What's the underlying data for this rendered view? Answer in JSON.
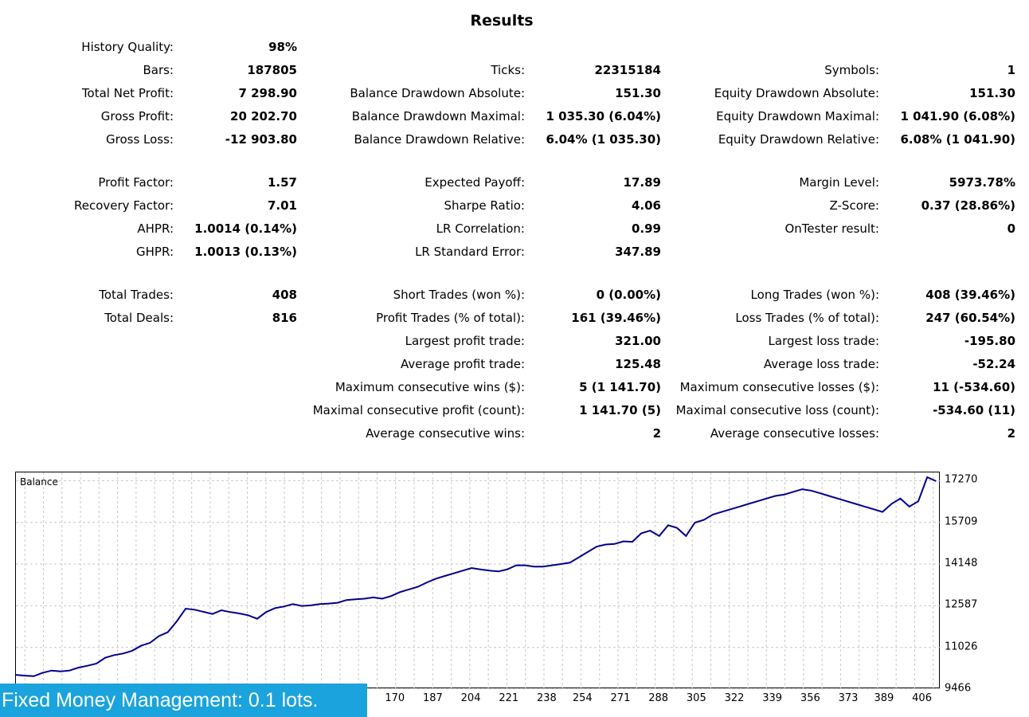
{
  "title": "Results",
  "stats": {
    "history_quality": {
      "label": "History Quality:",
      "value": "98%"
    },
    "bars": {
      "label": "Bars:",
      "value": "187805"
    },
    "ticks": {
      "label": "Ticks:",
      "value": "22315184"
    },
    "symbols": {
      "label": "Symbols:",
      "value": "1"
    },
    "total_net_profit": {
      "label": "Total Net Profit:",
      "value": "7 298.90"
    },
    "balance_dd_abs": {
      "label": "Balance Drawdown Absolute:",
      "value": "151.30"
    },
    "equity_dd_abs": {
      "label": "Equity Drawdown Absolute:",
      "value": "151.30"
    },
    "gross_profit": {
      "label": "Gross Profit:",
      "value": "20 202.70"
    },
    "balance_dd_max": {
      "label": "Balance Drawdown Maximal:",
      "value": "1 035.30 (6.04%)"
    },
    "equity_dd_max": {
      "label": "Equity Drawdown Maximal:",
      "value": "1 041.90 (6.08%)"
    },
    "gross_loss": {
      "label": "Gross Loss:",
      "value": "-12 903.80"
    },
    "balance_dd_rel": {
      "label": "Balance Drawdown Relative:",
      "value": "6.04% (1 035.30)"
    },
    "equity_dd_rel": {
      "label": "Equity Drawdown Relative:",
      "value": "6.08% (1 041.90)"
    },
    "profit_factor": {
      "label": "Profit Factor:",
      "value": "1.57"
    },
    "expected_payoff": {
      "label": "Expected Payoff:",
      "value": "17.89"
    },
    "margin_level": {
      "label": "Margin Level:",
      "value": "5973.78%"
    },
    "recovery_factor": {
      "label": "Recovery Factor:",
      "value": "7.01"
    },
    "sharpe_ratio": {
      "label": "Sharpe Ratio:",
      "value": "4.06"
    },
    "z_score": {
      "label": "Z-Score:",
      "value": "0.37 (28.86%)"
    },
    "ahpr": {
      "label": "AHPR:",
      "value": "1.0014 (0.14%)"
    },
    "lr_correlation": {
      "label": "LR Correlation:",
      "value": "0.99"
    },
    "ontester": {
      "label": "OnTester result:",
      "value": "0"
    },
    "ghpr": {
      "label": "GHPR:",
      "value": "1.0013 (0.13%)"
    },
    "lr_std_error": {
      "label": "LR Standard Error:",
      "value": "347.89"
    },
    "total_trades": {
      "label": "Total Trades:",
      "value": "408"
    },
    "short_trades": {
      "label": "Short Trades (won %):",
      "value": "0 (0.00%)"
    },
    "long_trades": {
      "label": "Long Trades (won %):",
      "value": "408 (39.46%)"
    },
    "total_deals": {
      "label": "Total Deals:",
      "value": "816"
    },
    "profit_trades": {
      "label": "Profit Trades (% of total):",
      "value": "161 (39.46%)"
    },
    "loss_trades": {
      "label": "Loss Trades (% of total):",
      "value": "247 (60.54%)"
    },
    "largest_profit": {
      "label": "Largest profit trade:",
      "value": "321.00"
    },
    "largest_loss": {
      "label": "Largest loss trade:",
      "value": "-195.80"
    },
    "avg_profit": {
      "label": "Average profit trade:",
      "value": "125.48"
    },
    "avg_loss": {
      "label": "Average loss trade:",
      "value": "-52.24"
    },
    "max_consec_wins": {
      "label": "Maximum consecutive wins ($):",
      "value": "5 (1 141.70)"
    },
    "max_consec_losses": {
      "label": "Maximum consecutive losses ($):",
      "value": "11 (-534.60)"
    },
    "maximal_consec_profit": {
      "label": "Maximal consecutive profit (count):",
      "value": "1 141.70 (5)"
    },
    "maximal_consec_loss": {
      "label": "Maximal consecutive loss (count):",
      "value": "-534.60 (11)"
    },
    "avg_consec_wins": {
      "label": "Average consecutive wins:",
      "value": "2"
    },
    "avg_consec_losses": {
      "label": "Average consecutive losses:",
      "value": "2"
    }
  },
  "chart_data": {
    "type": "line",
    "title": "Balance",
    "xlabel": "",
    "ylabel": "",
    "grid": true,
    "line_color": "#00008b",
    "y_ticks": [
      "17270",
      "15709",
      "14148",
      "12587",
      "11026",
      "9466"
    ],
    "y_tick_values": [
      17270,
      15709,
      14148,
      12587,
      11026,
      9466
    ],
    "x_ticks": [
      "170",
      "187",
      "204",
      "221",
      "238",
      "254",
      "271",
      "288",
      "305",
      "322",
      "339",
      "356",
      "373",
      "389",
      "406"
    ],
    "x_tick_values": [
      170,
      187,
      204,
      221,
      238,
      254,
      271,
      288,
      305,
      322,
      339,
      356,
      373,
      389,
      406
    ],
    "xlim": [
      0,
      414
    ],
    "ylim": [
      9466,
      17579
    ],
    "series": [
      {
        "points": [
          [
            0,
            10000
          ],
          [
            4,
            9970
          ],
          [
            8,
            9950
          ],
          [
            12,
            10080
          ],
          [
            16,
            10160
          ],
          [
            20,
            10130
          ],
          [
            24,
            10160
          ],
          [
            28,
            10270
          ],
          [
            32,
            10340
          ],
          [
            36,
            10420
          ],
          [
            40,
            10640
          ],
          [
            44,
            10740
          ],
          [
            48,
            10800
          ],
          [
            52,
            10900
          ],
          [
            56,
            11090
          ],
          [
            60,
            11200
          ],
          [
            64,
            11450
          ],
          [
            68,
            11600
          ],
          [
            72,
            12000
          ],
          [
            76,
            12480
          ],
          [
            80,
            12440
          ],
          [
            84,
            12360
          ],
          [
            88,
            12280
          ],
          [
            92,
            12420
          ],
          [
            96,
            12350
          ],
          [
            100,
            12300
          ],
          [
            104,
            12230
          ],
          [
            108,
            12100
          ],
          [
            112,
            12350
          ],
          [
            116,
            12500
          ],
          [
            120,
            12560
          ],
          [
            124,
            12650
          ],
          [
            128,
            12580
          ],
          [
            132,
            12600
          ],
          [
            136,
            12650
          ],
          [
            140,
            12670
          ],
          [
            144,
            12700
          ],
          [
            148,
            12800
          ],
          [
            152,
            12830
          ],
          [
            156,
            12850
          ],
          [
            160,
            12900
          ],
          [
            164,
            12850
          ],
          [
            168,
            12950
          ],
          [
            172,
            13100
          ],
          [
            176,
            13200
          ],
          [
            180,
            13300
          ],
          [
            184,
            13460
          ],
          [
            188,
            13600
          ],
          [
            192,
            13700
          ],
          [
            196,
            13800
          ],
          [
            200,
            13900
          ],
          [
            204,
            14000
          ],
          [
            208,
            13950
          ],
          [
            212,
            13900
          ],
          [
            216,
            13870
          ],
          [
            220,
            13950
          ],
          [
            224,
            14100
          ],
          [
            228,
            14100
          ],
          [
            232,
            14050
          ],
          [
            236,
            14050
          ],
          [
            240,
            14100
          ],
          [
            244,
            14150
          ],
          [
            248,
            14200
          ],
          [
            252,
            14400
          ],
          [
            256,
            14600
          ],
          [
            260,
            14800
          ],
          [
            264,
            14880
          ],
          [
            268,
            14900
          ],
          [
            272,
            15000
          ],
          [
            276,
            14980
          ],
          [
            280,
            15300
          ],
          [
            284,
            15400
          ],
          [
            288,
            15200
          ],
          [
            292,
            15600
          ],
          [
            296,
            15500
          ],
          [
            300,
            15200
          ],
          [
            304,
            15700
          ],
          [
            308,
            15800
          ],
          [
            312,
            16000
          ],
          [
            316,
            16100
          ],
          [
            320,
            16200
          ],
          [
            324,
            16300
          ],
          [
            328,
            16400
          ],
          [
            332,
            16500
          ],
          [
            336,
            16600
          ],
          [
            340,
            16700
          ],
          [
            344,
            16750
          ],
          [
            348,
            16850
          ],
          [
            352,
            16950
          ],
          [
            356,
            16900
          ],
          [
            360,
            16800
          ],
          [
            364,
            16700
          ],
          [
            368,
            16600
          ],
          [
            372,
            16500
          ],
          [
            376,
            16400
          ],
          [
            380,
            16300
          ],
          [
            384,
            16200
          ],
          [
            388,
            16100
          ],
          [
            392,
            16400
          ],
          [
            396,
            16600
          ],
          [
            400,
            16300
          ],
          [
            404,
            16500
          ],
          [
            408,
            17400
          ],
          [
            412,
            17250
          ]
        ]
      }
    ]
  },
  "banner": "Fixed Money Management: 0.1 lots."
}
